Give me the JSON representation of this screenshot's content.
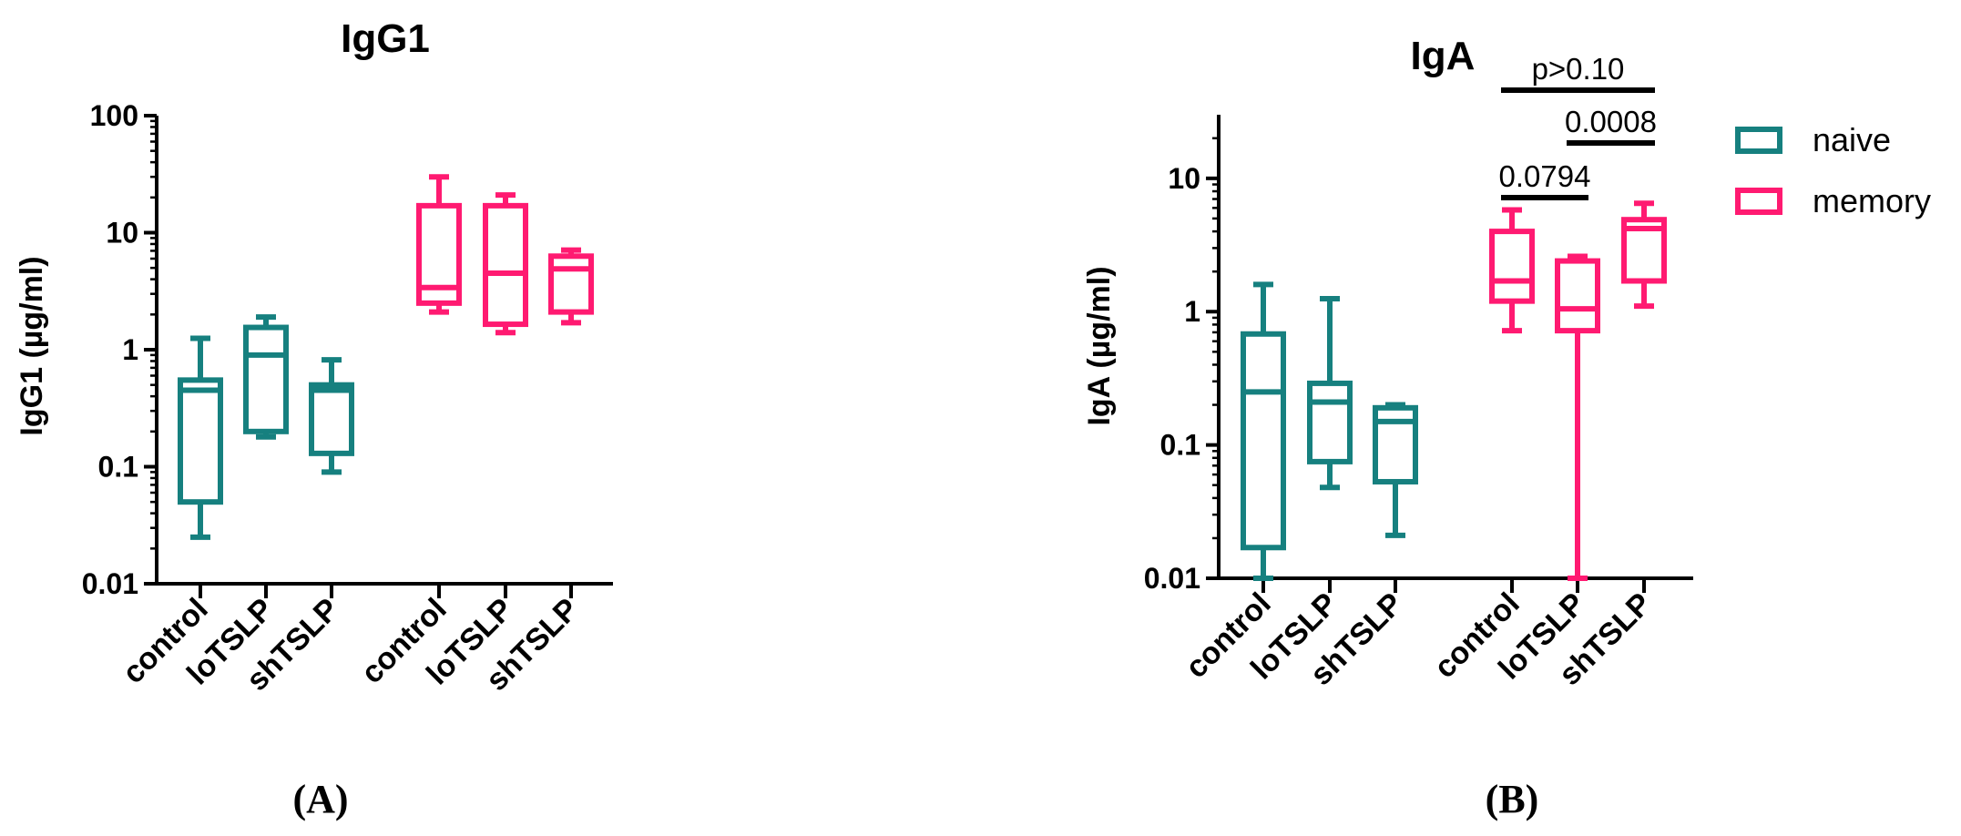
{
  "chart_data": [
    {
      "panel_label": "(A)",
      "type": "boxplot",
      "title": "IgG1",
      "ylabel": "IgG1 (µg/ml)",
      "yscale": "log",
      "ylim": [
        0.01,
        100
      ],
      "yticks": [
        "0.01",
        "0.1",
        "1",
        "10",
        "100"
      ],
      "groups": [
        {
          "series": "naive",
          "category": "control",
          "min": 0.025,
          "q1": 0.05,
          "median": 0.45,
          "q3": 0.55,
          "max": 1.25
        },
        {
          "series": "naive",
          "category": "loTSLP",
          "min": 0.18,
          "q1": 0.2,
          "median": 0.9,
          "q3": 1.55,
          "max": 1.9
        },
        {
          "series": "naive",
          "category": "shTSLP",
          "min": 0.09,
          "q1": 0.13,
          "median": 0.45,
          "q3": 0.5,
          "max": 0.82
        },
        {
          "series": "memory",
          "category": "control",
          "min": 2.1,
          "q1": 2.5,
          "median": 3.4,
          "q3": 17,
          "max": 30
        },
        {
          "series": "memory",
          "category": "loTSLP",
          "min": 1.4,
          "q1": 1.65,
          "median": 4.5,
          "q3": 17,
          "max": 21
        },
        {
          "series": "memory",
          "category": "shTSLP",
          "min": 1.7,
          "q1": 2.1,
          "median": 4.9,
          "q3": 6.3,
          "max": 7.1
        }
      ],
      "annotations": []
    },
    {
      "panel_label": "(B)",
      "type": "boxplot",
      "title": "IgA",
      "ylabel": "IgA (µg/ml)",
      "yscale": "log",
      "ylim": [
        0.01,
        30
      ],
      "yticks": [
        "0.01",
        "0.1",
        "1",
        "10"
      ],
      "groups": [
        {
          "series": "naive",
          "category": "control",
          "min": 0.01,
          "q1": 0.017,
          "median": 0.25,
          "q3": 0.68,
          "max": 1.6
        },
        {
          "series": "naive",
          "category": "loTSLP",
          "min": 0.048,
          "q1": 0.075,
          "median": 0.21,
          "q3": 0.29,
          "max": 1.25
        },
        {
          "series": "naive",
          "category": "shTSLP",
          "min": 0.021,
          "q1": 0.053,
          "median": 0.15,
          "q3": 0.19,
          "max": 0.2
        },
        {
          "series": "memory",
          "category": "control",
          "min": 0.72,
          "q1": 1.2,
          "median": 1.7,
          "q3": 4,
          "max": 5.8
        },
        {
          "series": "memory",
          "category": "loTSLP",
          "min": 0.01,
          "q1": 0.72,
          "median": 1.05,
          "q3": 2.4,
          "max": 2.6
        },
        {
          "series": "memory",
          "category": "shTSLP",
          "min": 1.1,
          "q1": 1.7,
          "median": 4.2,
          "q3": 4.9,
          "max": 6.5
        }
      ],
      "annotations": [
        {
          "text": "p>0.10",
          "from": "memory control",
          "to": "memory shTSLP"
        },
        {
          "text": "0.0008",
          "from": "memory loTSLP",
          "to": "memory shTSLP"
        },
        {
          "text": "0.0794",
          "from": "memory control",
          "to": "memory loTSLP"
        }
      ]
    }
  ],
  "legend": {
    "position": "right",
    "items": [
      {
        "label": "naive",
        "color": "#16807f"
      },
      {
        "label": "memory",
        "color": "#ff1a71"
      }
    ]
  }
}
